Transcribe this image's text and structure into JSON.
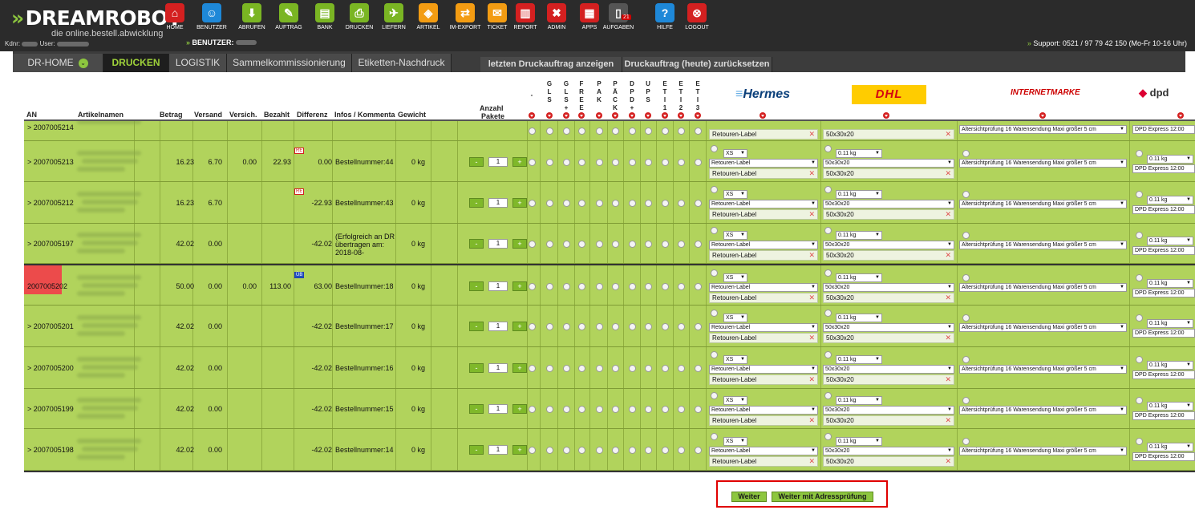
{
  "app": {
    "logo_text": "DREAMROBOT",
    "logo_chevron": "»",
    "logo_sub": "die online.bestell.abwicklung",
    "kdnr_label": "Kdnr:",
    "user_label": "User:",
    "benutzer_label": "BENUTZER:",
    "benutzer_chevron": "»",
    "support_text": "Support: 0521 / 97 79 42 150 (Mo-Fr 10-16 Uhr)"
  },
  "nav": [
    {
      "label": "HOME",
      "icon": "home-icon",
      "glyph": "⌂",
      "color": "#d42020"
    },
    {
      "label": "BENUTZER",
      "icon": "user-icon",
      "glyph": "☺",
      "color": "#1e88d8"
    },
    {
      "label": "ABRUFEN",
      "icon": "download-icon",
      "glyph": "⬇",
      "color": "#7ab523"
    },
    {
      "label": "AUFTRAG",
      "icon": "order-icon",
      "glyph": "✎",
      "color": "#7ab523"
    },
    {
      "label": "BANK",
      "icon": "bank-icon",
      "glyph": "▤",
      "color": "#7ab523"
    },
    {
      "label": "DRUCKEN",
      "icon": "print-icon",
      "glyph": "⎙",
      "color": "#7ab523"
    },
    {
      "label": "LIEFERN",
      "icon": "delivery-icon",
      "glyph": "✈",
      "color": "#7ab523"
    },
    {
      "label": "ARTIKEL",
      "icon": "article-icon",
      "glyph": "◈",
      "color": "#f39c12"
    },
    {
      "label": "IM-EXPORT",
      "icon": "import-export-icon",
      "glyph": "⇄",
      "color": "#f39c12"
    },
    {
      "label": "TICKET",
      "icon": "ticket-icon",
      "glyph": "✉",
      "color": "#f39c12"
    },
    {
      "label": "REPORT",
      "icon": "report-icon",
      "glyph": "▥",
      "color": "#d42020"
    },
    {
      "label": "ADMIN",
      "icon": "admin-icon",
      "glyph": "✖",
      "color": "#d42020"
    },
    {
      "label": "APPS",
      "icon": "apps-icon",
      "glyph": "▦",
      "color": "#d42020"
    },
    {
      "label": "AUFGABEN",
      "icon": "tasks-icon",
      "glyph": "▯",
      "color": "#555",
      "badge": "21"
    },
    {
      "label": "HILFE",
      "icon": "help-icon",
      "glyph": "?",
      "color": "#1e88d8"
    },
    {
      "label": "LOGOUT",
      "icon": "logout-icon",
      "glyph": "⊗",
      "color": "#d42020"
    }
  ],
  "tabs": [
    {
      "label": "DR-HOME",
      "active": false
    },
    {
      "label": "DRUCKEN",
      "active": true
    },
    {
      "label": "LOGISTIK",
      "active": false
    },
    {
      "label": "Sammelkommissionierung",
      "active": false
    },
    {
      "label": "Etiketten-Nachdruck",
      "active": false
    },
    {
      "label": "letzten Druckauftrag anzeigen",
      "active": false
    },
    {
      "label": "Druckauftrag (heute) zurücksetzen",
      "active": false
    }
  ],
  "headers": {
    "an": "AN",
    "artikel": "Artikelnamen",
    "betrag": "Betrag",
    "versand": "Versand",
    "versich": "Versich.",
    "bezahlt": "Bezahlt",
    "differenz": "Differenz",
    "infos": "Infos / Kommenta",
    "gewicht": "Gewicht",
    "anzahl": "Anzahl",
    "pakete": "Pakete"
  },
  "vheaders": [
    "-",
    "GLS",
    "GLS+",
    "FREE",
    "PAK",
    "PÄCK",
    "DPD+",
    "UPS",
    "ETI1",
    "ETI2",
    "ETI3"
  ],
  "carriers": {
    "hermes": "Hermes",
    "dhl": "DHL",
    "internetmarke": "INTERNETMARKE",
    "dpd": "dpd"
  },
  "row_defaults": {
    "hermes_size": "XS",
    "hermes_type": "Retouren-Label",
    "hermes_field": "Retouren-Label",
    "dhl_weight": "0.11 kg",
    "dhl_dim": "50x30x20",
    "dhl_field": "50x30x20",
    "im_select": "Altersichtprüfung 16 Warensendung Maxi größer 5 cm",
    "dpd_weight": "0.11 kg",
    "dpd_service": "DPD Express 12:00"
  },
  "rows": [
    {
      "an": "> 2007005214",
      "betrag": "",
      "versand": "",
      "versich": "",
      "bezahlt": "",
      "differenz": "",
      "info": "",
      "gewicht": "",
      "anzahl": "",
      "partial": true
    },
    {
      "an": "> 2007005213",
      "betrag": "16.23",
      "versand": "6.70",
      "versich": "0.00",
      "bezahlt": "22.93",
      "differenz": "0.00",
      "info": "Bestellnummer:44",
      "gewicht": "0 kg",
      "anzahl": "1",
      "badge": "RE"
    },
    {
      "an": "> 2007005212",
      "betrag": "16.23",
      "versand": "6.70",
      "versich": "",
      "bezahlt": "",
      "differenz": "-22.93",
      "info": "Bestellnummer:43",
      "gewicht": "0 kg",
      "anzahl": "1",
      "badge": "RE"
    },
    {
      "an": "> 2007005197",
      "betrag": "42.02",
      "versand": "0.00",
      "versich": "",
      "bezahlt": "",
      "differenz": "-42.02",
      "info": "(Erfolgreich an DR übertragen am: 2018-08-",
      "gewicht": "0 kg",
      "anzahl": "1"
    },
    {
      "an": "2007005202",
      "betrag": "50.00",
      "versand": "0.00",
      "versich": "0.00",
      "bezahlt": "113.00",
      "differenz": "63.00",
      "info": "Bestellnummer:18",
      "gewicht": "0 kg",
      "anzahl": "1",
      "badge": "ÜB",
      "highlight": true
    },
    {
      "an": "> 2007005201",
      "betrag": "42.02",
      "versand": "0.00",
      "versich": "",
      "bezahlt": "",
      "differenz": "-42.02",
      "info": "Bestellnummer:17",
      "gewicht": "0 kg",
      "anzahl": "1"
    },
    {
      "an": "> 2007005200",
      "betrag": "42.02",
      "versand": "0.00",
      "versich": "",
      "bezahlt": "",
      "differenz": "-42.02",
      "info": "Bestellnummer:16",
      "gewicht": "0 kg",
      "anzahl": "1"
    },
    {
      "an": "> 2007005199",
      "betrag": "42.02",
      "versand": "0.00",
      "versich": "",
      "bezahlt": "",
      "differenz": "-42.02",
      "info": "Bestellnummer:15",
      "gewicht": "0 kg",
      "anzahl": "1"
    },
    {
      "an": "> 2007005198",
      "betrag": "42.02",
      "versand": "0.00",
      "versich": "",
      "bezahlt": "",
      "differenz": "-42.02",
      "info": "Bestellnummer:14",
      "gewicht": "0 kg",
      "anzahl": "1"
    }
  ],
  "stepper": {
    "minus": "-",
    "plus": "+"
  },
  "footer": {
    "weiter": "Weiter",
    "weiter_adress": "Weiter mit Adressprüfung"
  },
  "colors": {
    "row_bg": "#b1d35c",
    "highlight": "#ec4b4b",
    "accent": "#8dc63f"
  }
}
